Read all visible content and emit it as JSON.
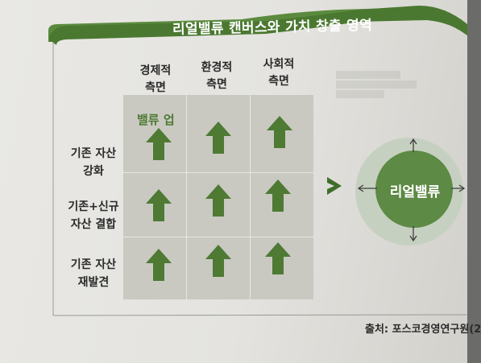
{
  "title": "리얼밸류 캔버스와 가치 창출 영역",
  "columns": [
    "경제적\n측면",
    "환경적\n측면",
    "사회적\n측면"
  ],
  "rows": [
    "기존 자산\n강화",
    "기존+신규\n자산 결합",
    "기존 자산\n재발견"
  ],
  "grid_label": "밸류 업",
  "circle_label": "리얼밸류",
  "source": "출처: 포스코경영연구원(2",
  "icons": {
    "cell_arrow": "up-arrow-icon",
    "connector": "chevron-right-icon",
    "circle_arrows": "four-direction-arrows-icon"
  },
  "colors": {
    "banner": "#4d7c32",
    "arrow": "#4e7a34",
    "grid_bg": "#c9c9c2",
    "circle_outer": "#c6d0c0",
    "circle_inner": "#5d8a44"
  }
}
